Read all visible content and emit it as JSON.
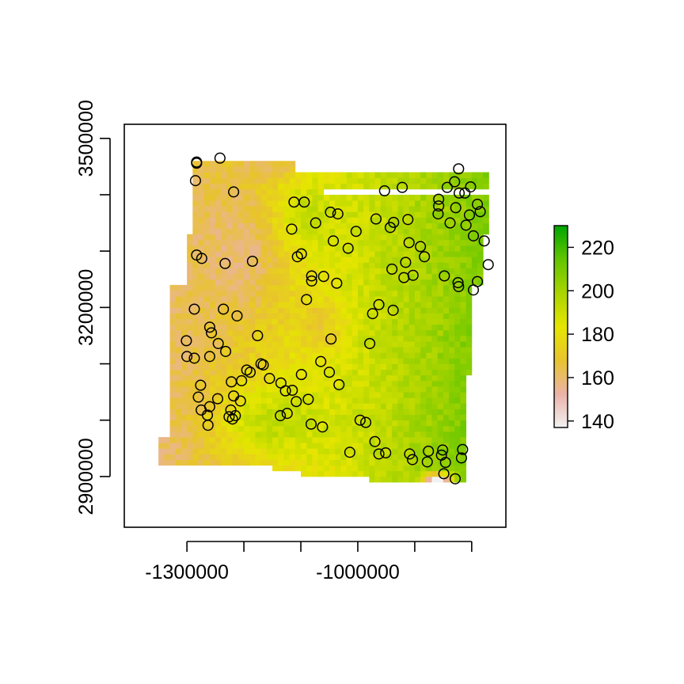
{
  "chart_data": {
    "type": "heatmap",
    "title": "",
    "xlabel": "",
    "ylabel": "",
    "xlim": [
      -1410000,
      -740000
    ],
    "ylim": [
      2810000,
      3525000
    ],
    "x_ticks": [
      -1300000,
      -1200000,
      -1100000,
      -1000000,
      -900000,
      -800000
    ],
    "x_tick_labels": [
      "-1300000",
      "",
      "",
      "-1000000",
      "",
      ""
    ],
    "y_ticks": [
      2900000,
      3000000,
      3100000,
      3200000,
      3300000,
      3400000,
      3500000
    ],
    "y_tick_labels": [
      "2900000",
      "",
      "",
      "3200000",
      "",
      "",
      "3500000"
    ],
    "raster": {
      "x_range": [
        -1330000,
        -770000
      ],
      "y_range": [
        2890000,
        3460000
      ],
      "cell_size": 10000,
      "value_range": [
        137,
        230
      ],
      "description_free": true
    },
    "legend": {
      "position": "right",
      "ticks": [
        140,
        160,
        180,
        200,
        220
      ],
      "tick_labels": [
        "140",
        "160",
        "180",
        "200",
        "220"
      ],
      "min": 137,
      "max": 230
    },
    "palette": [
      "#F2F2F2",
      "#EBB3A8",
      "#E8C32E",
      "#E6E600",
      "#AAD400",
      "#63C600",
      "#00A600"
    ],
    "points": [
      [
        -1283000,
        3458000
      ],
      [
        -1283000,
        3456000
      ],
      [
        -1285000,
        3425000
      ],
      [
        -1218000,
        3405000
      ],
      [
        -1242000,
        3465000
      ],
      [
        -1112000,
        3387000
      ],
      [
        -1094000,
        3387000
      ],
      [
        -1048000,
        3369000
      ],
      [
        -1035000,
        3366000
      ],
      [
        -1074000,
        3350000
      ],
      [
        -1116000,
        3339000
      ],
      [
        -1003000,
        3335000
      ],
      [
        -1043000,
        3318000
      ],
      [
        -1283000,
        3293000
      ],
      [
        -1274000,
        3287000
      ],
      [
        -1233000,
        3278000
      ],
      [
        -1185000,
        3282000
      ],
      [
        -1099000,
        3295000
      ],
      [
        -1106000,
        3290000
      ],
      [
        -1017000,
        3305000
      ],
      [
        -1081000,
        3256000
      ],
      [
        -1081000,
        3247000
      ],
      [
        -1060000,
        3255000
      ],
      [
        -1037000,
        3243000
      ],
      [
        -1090000,
        3214000
      ],
      [
        -1287000,
        3197000
      ],
      [
        -1236000,
        3197000
      ],
      [
        -1212000,
        3185000
      ],
      [
        -1260000,
        3165000
      ],
      [
        -1257000,
        3155000
      ],
      [
        -1301000,
        3141000
      ],
      [
        -1245000,
        3136000
      ],
      [
        -1232000,
        3122000
      ],
      [
        -1176000,
        3150000
      ],
      [
        -1300000,
        3113000
      ],
      [
        -1287000,
        3110000
      ],
      [
        -1260000,
        3113000
      ],
      [
        -1047000,
        3144000
      ],
      [
        -979000,
        3136000
      ],
      [
        -963000,
        3205000
      ],
      [
        -974000,
        3189000
      ],
      [
        -938000,
        3195000
      ],
      [
        -903000,
        3257000
      ],
      [
        -919000,
        3253000
      ],
      [
        -910000,
        3315000
      ],
      [
        -940000,
        3268000
      ],
      [
        -916000,
        3280000
      ],
      [
        -890000,
        3308000
      ],
      [
        -883000,
        3290000
      ],
      [
        -848000,
        3256000
      ],
      [
        -824000,
        3244000
      ],
      [
        -823000,
        3237000
      ],
      [
        -797000,
        3231000
      ],
      [
        -790000,
        3246000
      ],
      [
        -859000,
        3366000
      ],
      [
        -843000,
        3413000
      ],
      [
        -858000,
        3380000
      ],
      [
        -838000,
        3350000
      ],
      [
        -810000,
        3346000
      ],
      [
        -797000,
        3327000
      ],
      [
        -778000,
        3318000
      ],
      [
        -771000,
        3276000
      ],
      [
        -828000,
        3377000
      ],
      [
        -822000,
        3403000
      ],
      [
        -790000,
        3383000
      ],
      [
        -785000,
        3370000
      ],
      [
        -802000,
        3414000
      ],
      [
        -830000,
        3423000
      ],
      [
        -823000,
        3446000
      ],
      [
        -812000,
        3403000
      ],
      [
        -804000,
        3364000
      ],
      [
        -912000,
        3356000
      ],
      [
        -943000,
        3342000
      ],
      [
        -937000,
        3351000
      ],
      [
        -968000,
        3357000
      ],
      [
        -953000,
        3407000
      ],
      [
        -922000,
        3413000
      ],
      [
        -858000,
        3392000
      ],
      [
        -1170000,
        3100000
      ],
      [
        -1166000,
        3098000
      ],
      [
        -1195000,
        3089000
      ],
      [
        -1189000,
        3085000
      ],
      [
        -1155000,
        3074000
      ],
      [
        -1135000,
        3066000
      ],
      [
        -1099000,
        3081000
      ],
      [
        -1065000,
        3104000
      ],
      [
        -1050000,
        3085000
      ],
      [
        -1115000,
        3053000
      ],
      [
        -1108000,
        3033000
      ],
      [
        -1087000,
        3037000
      ],
      [
        -1033000,
        3063000
      ],
      [
        -1127000,
        3052000
      ],
      [
        -1204000,
        3070000
      ],
      [
        -1222000,
        3068000
      ],
      [
        -1276000,
        3062000
      ],
      [
        -1280000,
        3041000
      ],
      [
        -1218000,
        3043000
      ],
      [
        -1206000,
        3034000
      ],
      [
        -1246000,
        3038000
      ],
      [
        -1260000,
        3024000
      ],
      [
        -1275000,
        3018000
      ],
      [
        -1264000,
        3009000
      ],
      [
        -1223000,
        3018000
      ],
      [
        -1215000,
        3008000
      ],
      [
        -1220000,
        3002000
      ],
      [
        -1226000,
        3006000
      ],
      [
        -1263000,
        2991000
      ],
      [
        -1124000,
        3012000
      ],
      [
        -1136000,
        3008000
      ],
      [
        -1082000,
        2993000
      ],
      [
        -1062000,
        2988000
      ],
      [
        -996000,
        3000000
      ],
      [
        -986000,
        2996000
      ],
      [
        -970000,
        2962000
      ],
      [
        -1014000,
        2943000
      ],
      [
        -963000,
        2940000
      ],
      [
        -951000,
        2942000
      ],
      [
        -909000,
        2940000
      ],
      [
        -904000,
        2930000
      ],
      [
        -876000,
        2945000
      ],
      [
        -851000,
        2947000
      ],
      [
        -853000,
        2938000
      ],
      [
        -846000,
        2925000
      ],
      [
        -829000,
        2896000
      ],
      [
        -816000,
        2948000
      ],
      [
        -818000,
        2933000
      ],
      [
        -878000,
        2926000
      ],
      [
        -849000,
        2905000
      ]
    ]
  }
}
